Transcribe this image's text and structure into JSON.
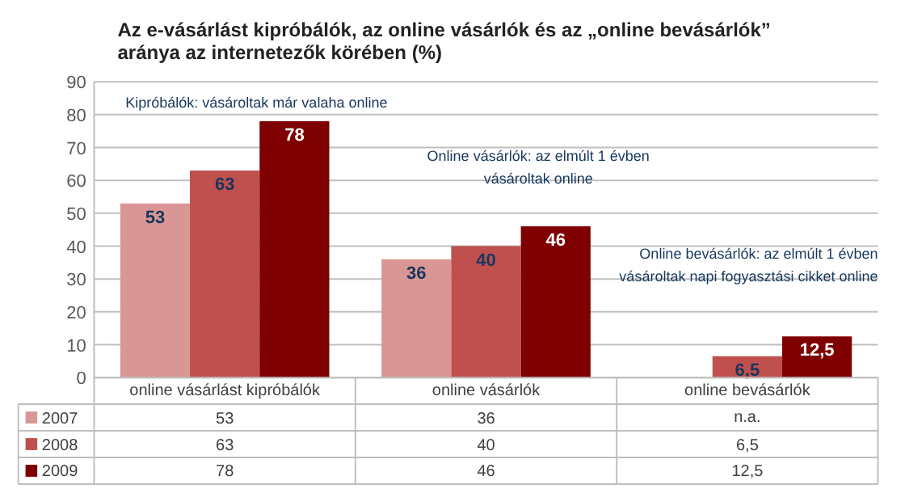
{
  "chart_data": {
    "type": "bar",
    "title": "Az e-vásárlást kipróbálók, az  online vásárlók és az „online bevásárlók”\naránya az internetezők körében (%)",
    "categories": [
      "online vásárlást kipróbálók",
      "online vásárlók",
      "online bevásárlók"
    ],
    "series": [
      {
        "name": "2007",
        "color": "#d99694",
        "values": [
          53,
          36,
          null
        ],
        "value_labels": [
          "53",
          "36",
          "n.a."
        ]
      },
      {
        "name": "2008",
        "color": "#c0504d",
        "values": [
          63,
          40,
          6.5
        ],
        "value_labels": [
          "63",
          "40",
          "6,5"
        ]
      },
      {
        "name": "2009",
        "color": "#7f0000",
        "values": [
          78,
          46,
          12.5
        ],
        "value_labels": [
          "78",
          "46",
          "12,5"
        ]
      }
    ],
    "ylim": [
      0,
      90
    ],
    "yticks": [
      0,
      10,
      20,
      30,
      40,
      50,
      60,
      70,
      80,
      90
    ],
    "grid": "y",
    "legend": "bottom",
    "annotations": [
      "Kipróbálók: vásároltak már valaha online",
      "Online vásárlók: az elmúlt 1 évben\nvásároltak online",
      "Online bevásárlók: az elmúlt 1 évben\nvásároltak napi fogyasztási cikket online"
    ]
  }
}
